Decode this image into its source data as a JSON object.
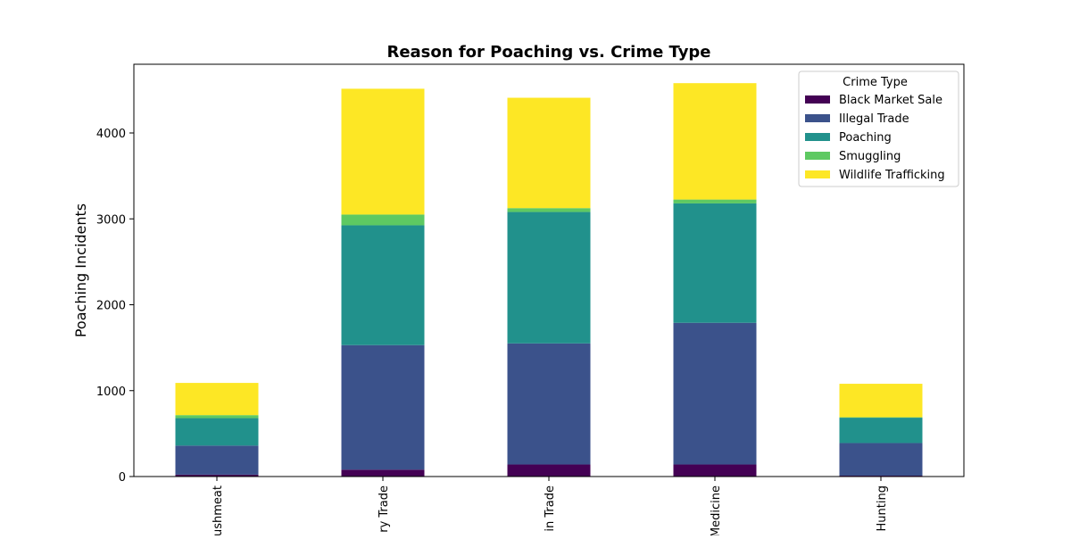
{
  "chart_data": {
    "type": "bar",
    "stacked": true,
    "title": "Reason for Poaching vs. Crime Type",
    "xlabel": "",
    "ylabel": "Poaching Incidents",
    "categories": [
      "ushmeat",
      "ry Trade",
      "in Trade",
      "Medicine",
      "Hunting"
    ],
    "ylim": [
      0,
      4800
    ],
    "yticks": [
      0,
      1000,
      2000,
      3000,
      4000
    ],
    "grid": false,
    "legend": {
      "title": "Crime Type",
      "placement": "upper right"
    },
    "series": [
      {
        "name": "Black Market Sale",
        "color": "#440154",
        "values": [
          22,
          80,
          140,
          140,
          10
        ]
      },
      {
        "name": "Illegal Trade",
        "color": "#3b528b",
        "values": [
          338,
          1450,
          1410,
          1650,
          380
        ]
      },
      {
        "name": "Poaching",
        "color": "#21918c",
        "values": [
          320,
          1395,
          1530,
          1390,
          295
        ]
      },
      {
        "name": "Smuggling",
        "color": "#5ec962",
        "values": [
          35,
          125,
          45,
          45,
          5
        ]
      },
      {
        "name": "Wildlife Trafficking",
        "color": "#fde725",
        "values": [
          375,
          1465,
          1285,
          1355,
          390
        ]
      }
    ]
  }
}
